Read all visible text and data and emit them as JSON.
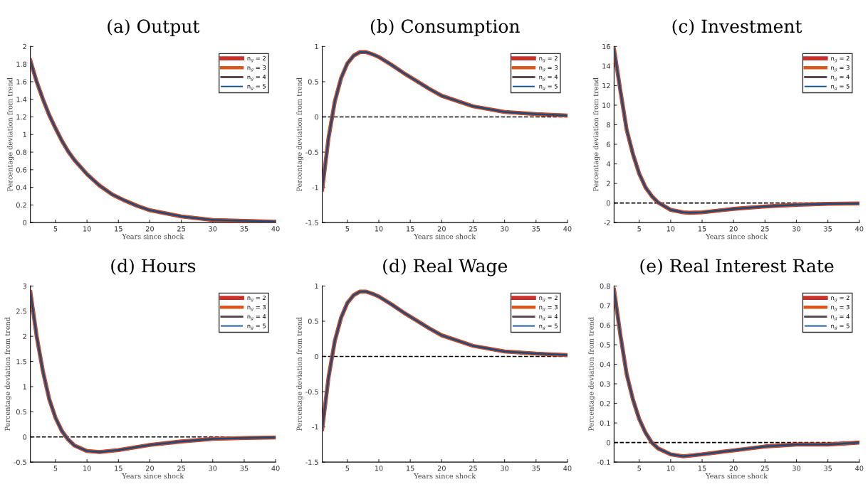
{
  "chart_data": [
    {
      "type": "line",
      "title": "(a) Output",
      "xlabel": "Years since shock",
      "ylabel": "Percentage deviation from trend",
      "legend": "top right",
      "xlim": [
        1,
        40
      ],
      "xticks": [
        5,
        10,
        15,
        20,
        25,
        30,
        35,
        40
      ],
      "ylim": [
        0,
        2
      ],
      "yticks": [
        0,
        0.2,
        0.4,
        0.6,
        0.8,
        1,
        1.2,
        1.4,
        1.6,
        1.8,
        2
      ],
      "x": [
        1,
        2,
        3,
        4,
        5,
        6,
        7,
        8,
        10,
        12,
        14,
        16,
        18,
        20,
        25,
        30,
        35,
        40
      ],
      "series": [
        {
          "name": "n$_{g}$ = 2",
          "color": "#c8322a",
          "values": [
            1.84,
            1.6,
            1.4,
            1.22,
            1.07,
            0.93,
            0.81,
            0.71,
            0.55,
            0.42,
            0.32,
            0.25,
            0.19,
            0.14,
            0.07,
            0.03,
            0.02,
            0.01
          ]
        },
        {
          "name": "n$_{g}$ = 3",
          "color": "#d9571c",
          "values": [
            1.84,
            1.6,
            1.4,
            1.22,
            1.07,
            0.93,
            0.81,
            0.71,
            0.55,
            0.42,
            0.32,
            0.25,
            0.19,
            0.14,
            0.07,
            0.03,
            0.02,
            0.01
          ]
        },
        {
          "name": "n$_{g}$ = 4",
          "color": "#5b4b4f",
          "values": [
            1.84,
            1.6,
            1.4,
            1.22,
            1.07,
            0.93,
            0.81,
            0.71,
            0.55,
            0.42,
            0.32,
            0.25,
            0.19,
            0.14,
            0.07,
            0.03,
            0.02,
            0.01
          ]
        },
        {
          "name": "n$_{g}$ = 5",
          "color": "#0e4c8c",
          "values": [
            1.84,
            1.6,
            1.4,
            1.22,
            1.07,
            0.93,
            0.81,
            0.71,
            0.55,
            0.42,
            0.32,
            0.25,
            0.19,
            0.14,
            0.07,
            0.03,
            0.02,
            0.01
          ]
        }
      ]
    },
    {
      "type": "line",
      "title": "(b) Consumption",
      "xlabel": "Years since shock",
      "ylabel": "Percentage deviation from trend",
      "legend": "top right",
      "xlim": [
        1,
        40
      ],
      "xticks": [
        5,
        10,
        15,
        20,
        25,
        30,
        35,
        40
      ],
      "ylim": [
        -1.5,
        1
      ],
      "yticks": [
        -1.5,
        -1,
        -0.5,
        0,
        0.5,
        1
      ],
      "ref_lines": [
        {
          "axis": "y",
          "value": 0,
          "color": "#000000",
          "line_style": "dashed"
        }
      ],
      "x": [
        1,
        2,
        3,
        4,
        5,
        6,
        7,
        8,
        9,
        10,
        12,
        14,
        16,
        18,
        20,
        25,
        30,
        35,
        40
      ],
      "series": [
        {
          "name": "n$_{g}$ = 2",
          "color": "#c8322a",
          "values": [
            -1.03,
            -0.3,
            0.22,
            0.55,
            0.76,
            0.87,
            0.92,
            0.92,
            0.89,
            0.85,
            0.74,
            0.62,
            0.51,
            0.4,
            0.3,
            0.15,
            0.07,
            0.04,
            0.02
          ]
        },
        {
          "name": "n$_{g}$ = 3",
          "color": "#d9571c",
          "values": [
            -1.03,
            -0.3,
            0.22,
            0.55,
            0.76,
            0.87,
            0.92,
            0.92,
            0.89,
            0.85,
            0.74,
            0.62,
            0.51,
            0.4,
            0.3,
            0.15,
            0.07,
            0.04,
            0.02
          ]
        },
        {
          "name": "n$_{g}$ = 4",
          "color": "#5b4b4f",
          "values": [
            -1.03,
            -0.3,
            0.22,
            0.55,
            0.76,
            0.87,
            0.92,
            0.92,
            0.89,
            0.85,
            0.74,
            0.62,
            0.51,
            0.4,
            0.3,
            0.15,
            0.07,
            0.04,
            0.02
          ]
        },
        {
          "name": "n$_{g}$ = 5",
          "color": "#0e4c8c",
          "values": [
            -1.03,
            -0.3,
            0.22,
            0.55,
            0.76,
            0.87,
            0.92,
            0.92,
            0.89,
            0.85,
            0.74,
            0.62,
            0.51,
            0.4,
            0.3,
            0.15,
            0.07,
            0.04,
            0.02
          ]
        }
      ]
    },
    {
      "type": "line",
      "title": "(c) Investment",
      "xlabel": "Years since shock",
      "ylabel": "Percentage deviation from trend",
      "legend": "top right",
      "xlim": [
        1,
        40
      ],
      "xticks": [
        5,
        10,
        15,
        20,
        25,
        30,
        35,
        40
      ],
      "ylim": [
        -2,
        16
      ],
      "yticks": [
        -2,
        0,
        2,
        4,
        6,
        8,
        10,
        12,
        14,
        16
      ],
      "ref_lines": [
        {
          "axis": "y",
          "value": 0,
          "color": "#000000",
          "line_style": "dashed"
        }
      ],
      "x": [
        1,
        2,
        3,
        4,
        5,
        6,
        7,
        8,
        10,
        12,
        13,
        15,
        20,
        25,
        30,
        35,
        40
      ],
      "series": [
        {
          "name": "n$_{g}$ = 2",
          "color": "#c8322a",
          "values": [
            15.7,
            11.5,
            7.5,
            5.0,
            3.0,
            1.6,
            0.7,
            0.05,
            -0.7,
            -0.95,
            -1.0,
            -0.95,
            -0.6,
            -0.35,
            -0.18,
            -0.08,
            -0.05
          ]
        },
        {
          "name": "n$_{g}$ = 3",
          "color": "#d9571c",
          "values": [
            15.7,
            11.5,
            7.5,
            5.0,
            3.0,
            1.6,
            0.7,
            0.05,
            -0.7,
            -0.95,
            -1.0,
            -0.95,
            -0.6,
            -0.35,
            -0.18,
            -0.08,
            -0.05
          ]
        },
        {
          "name": "n$_{g}$ = 4",
          "color": "#5b4b4f",
          "values": [
            15.7,
            11.5,
            7.5,
            5.0,
            3.0,
            1.6,
            0.7,
            0.05,
            -0.7,
            -0.95,
            -1.0,
            -0.95,
            -0.6,
            -0.35,
            -0.18,
            -0.08,
            -0.05
          ]
        },
        {
          "name": "n$_{g}$ = 5",
          "color": "#0e4c8c",
          "values": [
            15.7,
            11.5,
            7.5,
            5.0,
            3.0,
            1.6,
            0.7,
            0.05,
            -0.7,
            -0.95,
            -1.0,
            -0.95,
            -0.6,
            -0.35,
            -0.18,
            -0.08,
            -0.05
          ]
        }
      ]
    },
    {
      "type": "line",
      "title": "(d) Hours",
      "xlabel": "Years since shock",
      "ylabel": "Percentage deviation from trend",
      "legend": "top right",
      "xlim": [
        1,
        40
      ],
      "xticks": [
        5,
        10,
        15,
        20,
        25,
        30,
        35,
        40
      ],
      "ylim": [
        -0.5,
        3
      ],
      "yticks": [
        -0.5,
        0,
        0.5,
        1,
        1.5,
        2,
        2.5,
        3
      ],
      "ref_lines": [
        {
          "axis": "y",
          "value": 0,
          "color": "#000000",
          "line_style": "dashed"
        }
      ],
      "x": [
        1,
        2,
        3,
        4,
        5,
        6,
        7,
        8,
        10,
        12,
        15,
        20,
        25,
        30,
        35,
        40
      ],
      "series": [
        {
          "name": "n$_{g}$ = 2",
          "color": "#c8322a",
          "values": [
            2.88,
            2.0,
            1.3,
            0.75,
            0.38,
            0.12,
            -0.05,
            -0.17,
            -0.28,
            -0.3,
            -0.26,
            -0.16,
            -0.09,
            -0.04,
            -0.02,
            -0.01
          ]
        },
        {
          "name": "n$_{g}$ = 3",
          "color": "#d9571c",
          "values": [
            2.88,
            2.0,
            1.3,
            0.75,
            0.38,
            0.12,
            -0.05,
            -0.17,
            -0.28,
            -0.3,
            -0.26,
            -0.16,
            -0.09,
            -0.04,
            -0.02,
            -0.01
          ]
        },
        {
          "name": "n$_{g}$ = 4",
          "color": "#5b4b4f",
          "values": [
            2.88,
            2.0,
            1.3,
            0.75,
            0.38,
            0.12,
            -0.05,
            -0.17,
            -0.28,
            -0.3,
            -0.26,
            -0.16,
            -0.09,
            -0.04,
            -0.02,
            -0.01
          ]
        },
        {
          "name": "n$_{g}$ = 5",
          "color": "#0e4c8c",
          "values": [
            2.88,
            2.0,
            1.3,
            0.75,
            0.38,
            0.12,
            -0.05,
            -0.17,
            -0.28,
            -0.3,
            -0.26,
            -0.16,
            -0.09,
            -0.04,
            -0.02,
            -0.01
          ]
        }
      ]
    },
    {
      "type": "line",
      "title": "(d) Real Wage",
      "xlabel": "Years since shock",
      "ylabel": "Percentage deviation from trend",
      "legend": "top right",
      "xlim": [
        1,
        40
      ],
      "xticks": [
        5,
        10,
        15,
        20,
        25,
        30,
        35,
        40
      ],
      "ylim": [
        -1.5,
        1
      ],
      "yticks": [
        -1.5,
        -1,
        -0.5,
        0,
        0.5,
        1
      ],
      "ref_lines": [
        {
          "axis": "y",
          "value": 0,
          "color": "#000000",
          "line_style": "dashed"
        }
      ],
      "x": [
        1,
        2,
        3,
        4,
        5,
        6,
        7,
        8,
        9,
        10,
        12,
        14,
        16,
        18,
        20,
        25,
        30,
        35,
        40
      ],
      "series": [
        {
          "name": "n$_{g}$ = 2",
          "color": "#c8322a",
          "values": [
            -1.03,
            -0.3,
            0.22,
            0.55,
            0.76,
            0.87,
            0.92,
            0.92,
            0.89,
            0.85,
            0.74,
            0.62,
            0.51,
            0.4,
            0.3,
            0.15,
            0.07,
            0.04,
            0.02
          ]
        },
        {
          "name": "n$_{g}$ = 3",
          "color": "#d9571c",
          "values": [
            -1.03,
            -0.3,
            0.22,
            0.55,
            0.76,
            0.87,
            0.92,
            0.92,
            0.89,
            0.85,
            0.74,
            0.62,
            0.51,
            0.4,
            0.3,
            0.15,
            0.07,
            0.04,
            0.02
          ]
        },
        {
          "name": "n$_{g}$ = 4",
          "color": "#5b4b4f",
          "values": [
            -1.03,
            -0.3,
            0.22,
            0.55,
            0.76,
            0.87,
            0.92,
            0.92,
            0.89,
            0.85,
            0.74,
            0.62,
            0.51,
            0.4,
            0.3,
            0.15,
            0.07,
            0.04,
            0.02
          ]
        },
        {
          "name": "n$_{g}$ = 5",
          "color": "#0e4c8c",
          "values": [
            -1.03,
            -0.3,
            0.22,
            0.55,
            0.76,
            0.87,
            0.92,
            0.92,
            0.89,
            0.85,
            0.74,
            0.62,
            0.51,
            0.4,
            0.3,
            0.15,
            0.07,
            0.04,
            0.02
          ]
        }
      ]
    },
    {
      "type": "line",
      "title": "(e) Real Interest Rate",
      "xlabel": "Years since shock",
      "ylabel": "Percentage deviation from trend",
      "legend": "top right",
      "xlim": [
        1,
        40
      ],
      "xticks": [
        5,
        10,
        15,
        20,
        25,
        30,
        35,
        40
      ],
      "ylim": [
        -0.1,
        0.8
      ],
      "yticks": [
        -0.1,
        0,
        0.1,
        0.2,
        0.3,
        0.4,
        0.5,
        0.6,
        0.7,
        0.8
      ],
      "ref_lines": [
        {
          "axis": "y",
          "value": 0,
          "color": "#000000",
          "line_style": "dashed"
        }
      ],
      "x": [
        1,
        2,
        3,
        4,
        5,
        6,
        7,
        8,
        10,
        12,
        15,
        20,
        25,
        30,
        35,
        40
      ],
      "series": [
        {
          "name": "n$_{g}$ = 2",
          "color": "#c8322a",
          "values": [
            0.78,
            0.55,
            0.35,
            0.22,
            0.12,
            0.05,
            0.0,
            -0.03,
            -0.06,
            -0.07,
            -0.06,
            -0.04,
            -0.02,
            -0.01,
            -0.01,
            0.0
          ]
        },
        {
          "name": "n$_{g}$ = 3",
          "color": "#d9571c",
          "values": [
            0.78,
            0.55,
            0.35,
            0.22,
            0.12,
            0.05,
            0.0,
            -0.03,
            -0.06,
            -0.07,
            -0.06,
            -0.04,
            -0.02,
            -0.01,
            -0.01,
            0.0
          ]
        },
        {
          "name": "n$_{g}$ = 4",
          "color": "#5b4b4f",
          "values": [
            0.78,
            0.55,
            0.35,
            0.22,
            0.12,
            0.05,
            0.0,
            -0.03,
            -0.06,
            -0.07,
            -0.06,
            -0.04,
            -0.02,
            -0.01,
            -0.01,
            0.0
          ]
        },
        {
          "name": "n$_{g}$ = 5",
          "color": "#0e4c8c",
          "values": [
            0.78,
            0.55,
            0.35,
            0.22,
            0.12,
            0.05,
            0.0,
            -0.03,
            -0.06,
            -0.07,
            -0.06,
            -0.04,
            -0.02,
            -0.01,
            -0.01,
            0.0
          ]
        }
      ]
    }
  ]
}
